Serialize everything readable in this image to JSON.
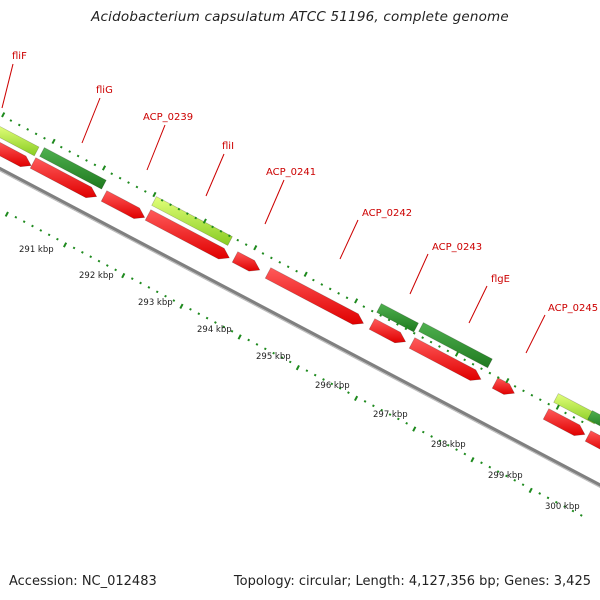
{
  "title": "Acidobacterium capsulatum ATCC 51196, complete genome",
  "footer": {
    "accession": "Accession: NC_012483",
    "summary": "Topology: circular; Length: 4,127,356 bp; Genes: 3,425"
  },
  "colors": {
    "forward_cds": "#ff0000",
    "reverse_dark": "#2e8b2e",
    "reverse_light": "#aaee33",
    "backbone": "#808080",
    "label": "#cc0000",
    "tick": "#1e8a1e"
  },
  "gene_labels": [
    {
      "name": "fliF"
    },
    {
      "name": "fliG"
    },
    {
      "name": "ACP_0239"
    },
    {
      "name": "fliI"
    },
    {
      "name": "ACP_0241"
    },
    {
      "name": "ACP_0242"
    },
    {
      "name": "ACP_0243"
    },
    {
      "name": "flgE"
    },
    {
      "name": "ACP_0245"
    }
  ],
  "kbp_labels": [
    "291 kbp",
    "292 kbp",
    "293 kbp",
    "294 kbp",
    "295 kbp",
    "296 kbp",
    "297 kbp",
    "298 kbp",
    "299 kbp",
    "300 kbp"
  ]
}
